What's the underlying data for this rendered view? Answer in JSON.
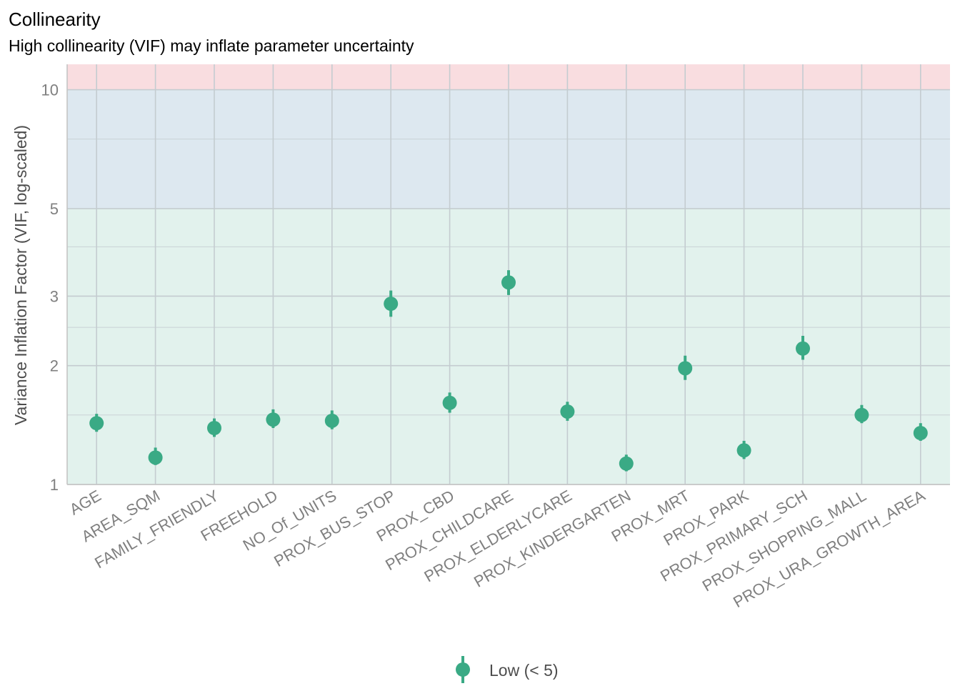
{
  "chart_data": {
    "type": "scatter",
    "title": "Collinearity",
    "subtitle": "High collinearity (VIF) may inflate parameter uncertainty",
    "xlabel": "",
    "ylabel": "Variance Inflation Factor (VIF, log-scaled)",
    "y_scale": "log",
    "ylim": [
      1,
      11.6
    ],
    "y_ticks": [
      1,
      2,
      3,
      5,
      10
    ],
    "y_minor_gridlines": [
      1.5,
      2.5,
      4,
      7.5
    ],
    "grid": true,
    "legend_position": "bottom",
    "bands": [
      {
        "from": 1,
        "to": 5,
        "color": "#e2f2ed"
      },
      {
        "from": 5,
        "to": 10,
        "color": "#dde8f0"
      },
      {
        "from": 10,
        "to": 11.6,
        "color": "#f9dde0"
      }
    ],
    "categories": [
      "AGE",
      "AREA_SQM",
      "FAMILY_FRIENDLY",
      "FREEHOLD",
      "NO_Of_UNITS",
      "PROX_BUS_STOP",
      "PROX_CBD",
      "PROX_CHILDCARE",
      "PROX_ELDERLYCARE",
      "PROX_KINDERGARTEN",
      "PROX_MRT",
      "PROX_PARK",
      "PROX_PRIMARY_SCH",
      "PROX_SHOPPING_MALL",
      "PROX_URA_GROWTH_AREA"
    ],
    "series": [
      {
        "name": "Low (< 5)",
        "color": "#3aaa85",
        "values": [
          1.43,
          1.17,
          1.39,
          1.46,
          1.45,
          2.87,
          1.61,
          3.25,
          1.53,
          1.13,
          1.97,
          1.22,
          2.21,
          1.5,
          1.35
        ],
        "ci_low": [
          1.36,
          1.12,
          1.32,
          1.39,
          1.38,
          2.66,
          1.52,
          3.02,
          1.45,
          1.08,
          1.84,
          1.16,
          2.07,
          1.43,
          1.29
        ],
        "ci_high": [
          1.51,
          1.24,
          1.47,
          1.55,
          1.54,
          3.1,
          1.71,
          3.49,
          1.62,
          1.19,
          2.12,
          1.29,
          2.38,
          1.59,
          1.43
        ]
      }
    ]
  }
}
